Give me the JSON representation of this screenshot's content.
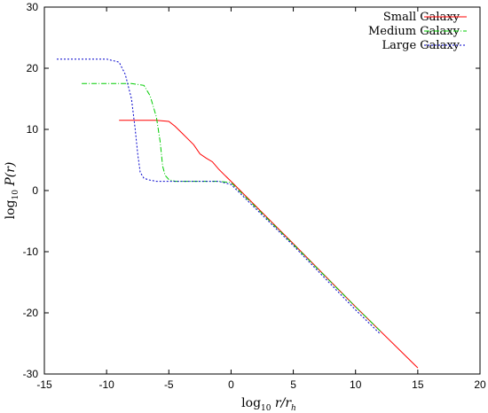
{
  "chart_data": {
    "type": "line",
    "title": "",
    "xlabel_parts": [
      "log",
      "10",
      " r/r",
      "h"
    ],
    "ylabel_parts": [
      "log",
      "10",
      " P(r)"
    ],
    "xlim": [
      -15,
      20
    ],
    "ylim": [
      -30,
      30
    ],
    "xticks": [
      -15,
      -10,
      -5,
      0,
      5,
      10,
      15,
      20
    ],
    "yticks": [
      -30,
      -20,
      -10,
      0,
      10,
      20,
      30
    ],
    "grid": false,
    "legend_position": "top-right",
    "series": [
      {
        "name": "Small Galaxy",
        "color": "#ff0000",
        "dash": "solid",
        "x": [
          -9,
          -6,
          -5,
          -4.5,
          -4,
          -3.5,
          -3,
          -2.5,
          -2,
          -1.5,
          -1,
          -0.5,
          0,
          5,
          10,
          15
        ],
        "y": [
          11.5,
          11.5,
          11.3,
          10.5,
          9.5,
          8.5,
          7.5,
          6,
          5.3,
          4.7,
          3.5,
          2.5,
          1.5,
          -8.7,
          -19,
          -29
        ]
      },
      {
        "name": "Medium Galaxy",
        "color": "#00cc00",
        "dash": "dashdot",
        "x": [
          -12,
          -8,
          -7,
          -6.5,
          -6,
          -5.7,
          -5.5,
          -5.3,
          -5,
          -4.5,
          -4,
          -3,
          -2,
          -1,
          0,
          5,
          10,
          12
        ],
        "y": [
          17.5,
          17.5,
          17.2,
          15.5,
          12,
          8,
          4,
          2.5,
          1.8,
          1.5,
          1.5,
          1.5,
          1.5,
          1.5,
          1.3,
          -8.8,
          -19,
          -23
        ]
      },
      {
        "name": "Large Galaxy",
        "color": "#0000cc",
        "dash": "dotted",
        "x": [
          -14,
          -10,
          -9,
          -8.5,
          -8,
          -7.7,
          -7.5,
          -7.3,
          -7,
          -6.5,
          -6,
          -5,
          -3,
          -1,
          0,
          5,
          10,
          12
        ],
        "y": [
          21.5,
          21.5,
          21,
          19,
          15,
          10,
          6,
          3,
          2,
          1.7,
          1.5,
          1.5,
          1.5,
          1.5,
          1,
          -9,
          -19.5,
          -23.5
        ]
      }
    ]
  }
}
